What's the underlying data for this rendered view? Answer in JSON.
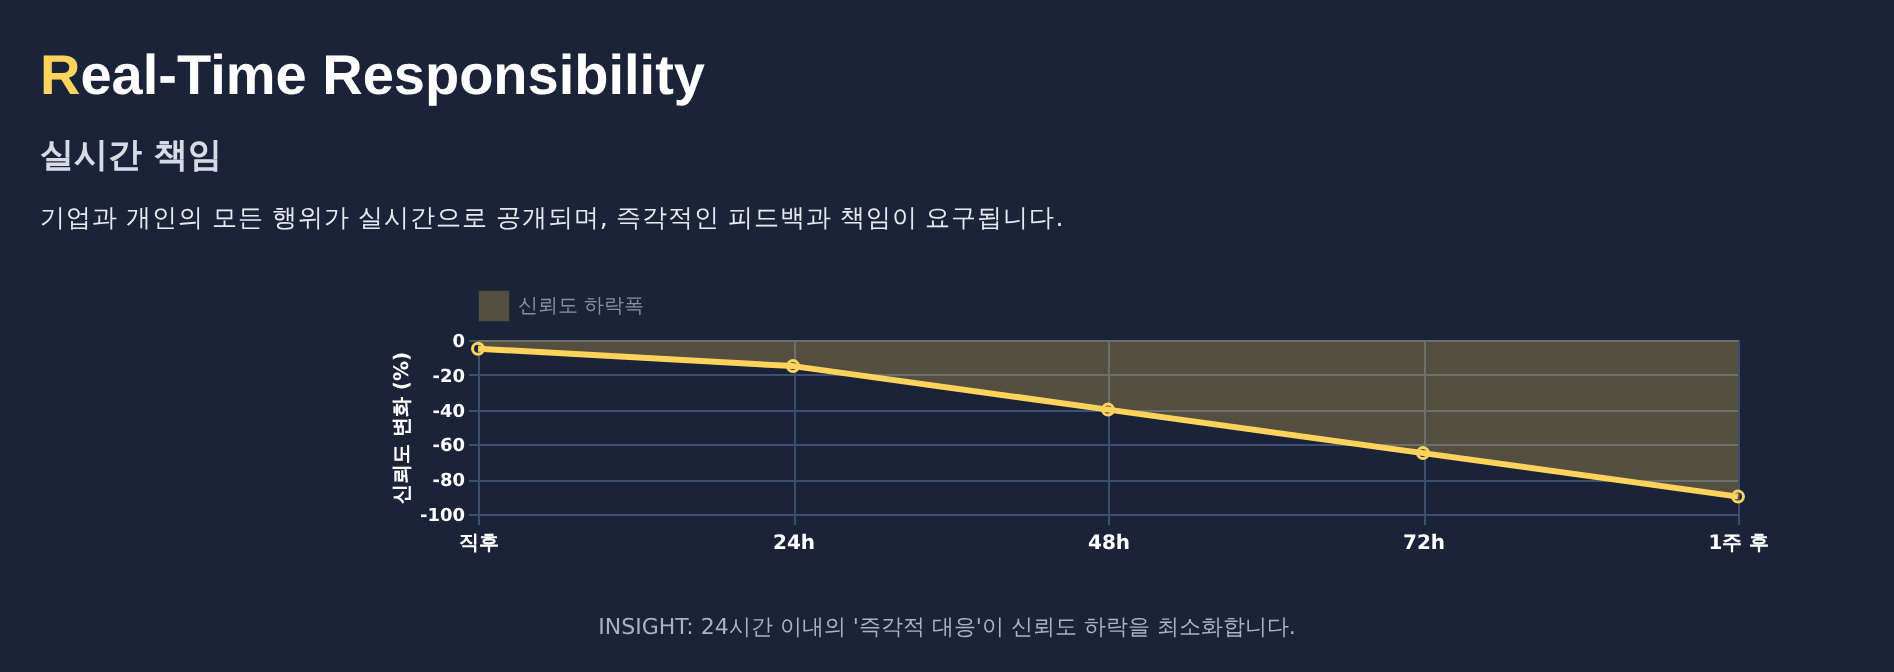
{
  "chart_data": {
    "type": "area",
    "title": "Real-Time Responsibility",
    "subtitle": "실시간 책임",
    "ylabel": "신뢰도 변화 (%)",
    "annotations": [
      "기업과 개인의 모든 행위가 실시간으로 공개되며, 즉각적인 피드백과 책임이 요구됩니다.",
      "INSIGHT: 24시간 이내의 '즉각적 대응'이 신뢰도 하락을 최소화합니다."
    ],
    "categories": [
      "직후",
      "24h",
      "48h",
      "72h",
      "1주 후"
    ],
    "series": [
      {
        "name": "신뢰도 하락폭",
        "color": "#ffd35c",
        "values": [
          -5,
          -15,
          -40,
          -65,
          -90
        ]
      }
    ],
    "ylim": [
      -100,
      0
    ],
    "yticks": [
      0,
      -20,
      -40,
      -60,
      -80,
      -100
    ],
    "grid": true,
    "legend": "top",
    "marker": "circle"
  }
}
